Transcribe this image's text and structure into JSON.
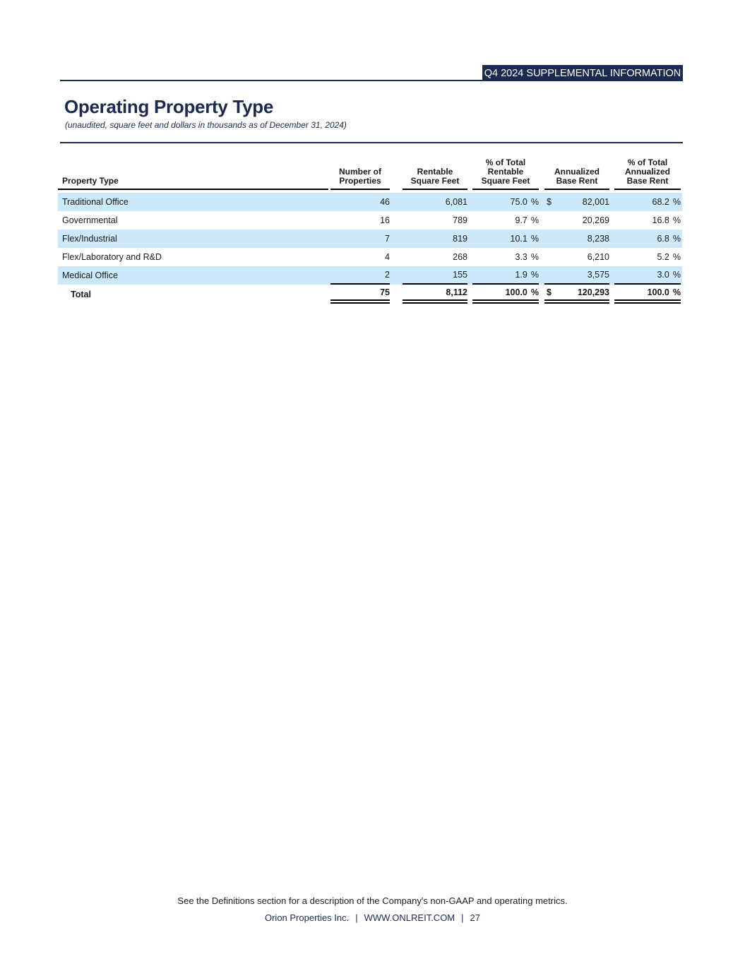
{
  "colors": {
    "navy": "#1b2a4e",
    "row_shade": "#cbe9fa"
  },
  "banner": {
    "label": "Q4 2024 SUPPLEMENTAL INFORMATION"
  },
  "header": {
    "title": "Operating Property Type",
    "subtitle": "(unaudited, square feet and dollars in thousands as of December 31, 2024)"
  },
  "table": {
    "percent_sign": "%",
    "columns": {
      "property_type": "Property Type",
      "num_properties": "Number of\nProperties",
      "rentable_sf": "Rentable\nSquare Feet",
      "pct_rentable_sf": "% of Total\nRentable\nSquare Feet",
      "annualized_base_rent": "Annualized\nBase Rent",
      "pct_annualized_base_rent": "% of Total\nAnnualized\nBase Rent"
    },
    "rows": [
      {
        "property_type": "Traditional Office",
        "num_properties": "46",
        "rentable_sf": "6,081",
        "pct_rentable_sf": "75.0",
        "currency": "$",
        "annualized_base_rent": "82,001",
        "pct_annualized_base_rent": "68.2"
      },
      {
        "property_type": "Governmental",
        "num_properties": "16",
        "rentable_sf": "789",
        "pct_rentable_sf": "9.7",
        "currency": "",
        "annualized_base_rent": "20,269",
        "pct_annualized_base_rent": "16.8"
      },
      {
        "property_type": "Flex/Industrial",
        "num_properties": "7",
        "rentable_sf": "819",
        "pct_rentable_sf": "10.1",
        "currency": "",
        "annualized_base_rent": "8,238",
        "pct_annualized_base_rent": "6.8"
      },
      {
        "property_type": "Flex/Laboratory and R&D",
        "num_properties": "4",
        "rentable_sf": "268",
        "pct_rentable_sf": "3.3",
        "currency": "",
        "annualized_base_rent": "6,210",
        "pct_annualized_base_rent": "5.2"
      },
      {
        "property_type": "Medical Office",
        "num_properties": "2",
        "rentable_sf": "155",
        "pct_rentable_sf": "1.9",
        "currency": "",
        "annualized_base_rent": "3,575",
        "pct_annualized_base_rent": "3.0"
      }
    ],
    "total": {
      "label": "Total",
      "num_properties": "75",
      "rentable_sf": "8,112",
      "pct_rentable_sf": "100.0",
      "currency": "$",
      "annualized_base_rent": "120,293",
      "pct_annualized_base_rent": "100.0"
    }
  },
  "footer": {
    "note": "See the Definitions section for a description of the Company's non-GAAP and operating metrics.",
    "company": "Orion Properties Inc.",
    "separator": "|",
    "website": "WWW.ONLREIT.COM",
    "page_number": "27"
  }
}
